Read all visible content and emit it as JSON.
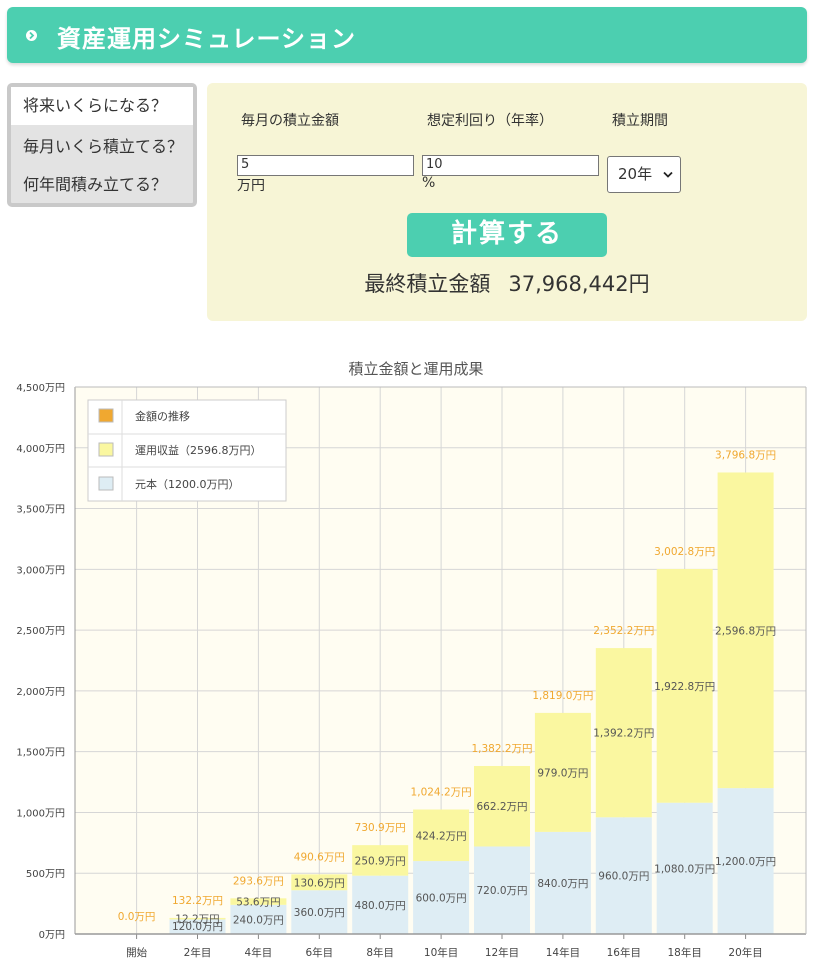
{
  "header": {
    "title": "資産運用シミュレーション"
  },
  "tabs": [
    {
      "label": "将来いくらになる？"
    },
    {
      "label": "毎月いくら積立てる？"
    },
    {
      "label": "何年間積み立てる？"
    }
  ],
  "form": {
    "monthly_label": "毎月の積立金額",
    "rate_label": "想定利回り（年率）",
    "period_label": "積立期間",
    "monthly_value": "5",
    "monthly_unit": "万円",
    "rate_value": "10",
    "rate_unit": "%",
    "period_value": "20年",
    "calc_label": "計算する",
    "result_label": "最終積立金額",
    "result_value": "37,968,442円"
  },
  "colors": {
    "accent": "#4ccfb0",
    "trend": "#f0a830",
    "profit": "#faf7a0",
    "principal": "#deedf4",
    "total_label": "#f0a830"
  },
  "chart_data": {
    "type": "bar",
    "title": "積立金額と運用成果",
    "categories": [
      "開始",
      "2年目",
      "4年目",
      "6年目",
      "8年目",
      "10年目",
      "12年目",
      "14年目",
      "16年目",
      "18年目",
      "20年目"
    ],
    "ylim": [
      0,
      4500
    ],
    "yticks": [
      0,
      500,
      1000,
      1500,
      2000,
      2500,
      3000,
      3500,
      4000,
      4500
    ],
    "ytick_labels": [
      "0万円",
      "500万円",
      "1,000万円",
      "1,500万円",
      "2,000万円",
      "2,500万円",
      "3,000万円",
      "3,500万円",
      "4,000万円",
      "4,500万円"
    ],
    "grid": true,
    "legend_position": "top-left",
    "legend": [
      "金額の推移",
      "運用収益（2596.8万円）",
      "元本（1200.0万円）"
    ],
    "series": [
      {
        "name": "元本（1200.0万円）",
        "values": [
          0,
          120.0,
          240.0,
          360.0,
          480.0,
          600.0,
          720.0,
          840.0,
          960.0,
          1080.0,
          1200.0
        ],
        "labels": [
          "",
          "120.0万円",
          "240.0万円",
          "360.0万円",
          "480.0万円",
          "600.0万円",
          "720.0万円",
          "840.0万円",
          "960.0万円",
          "1,080.0万円",
          "1,200.0万円"
        ]
      },
      {
        "name": "運用収益（2596.8万円）",
        "values": [
          0,
          12.2,
          53.6,
          130.6,
          250.9,
          424.2,
          662.2,
          979.0,
          1392.2,
          1922.8,
          2596.8
        ],
        "labels": [
          "",
          "12.2万円",
          "53.6万円",
          "130.6万円",
          "250.9万円",
          "424.2万円",
          "662.2万円",
          "979.0万円",
          "1,392.2万円",
          "1,922.8万円",
          "2,596.8万円"
        ]
      }
    ],
    "totals": [
      0.0,
      132.2,
      293.6,
      490.6,
      730.9,
      1024.2,
      1382.2,
      1819.0,
      2352.2,
      3002.8,
      3796.8
    ],
    "total_labels": [
      "0.0万円",
      "132.2万円",
      "293.6万円",
      "490.6万円",
      "730.9万円",
      "1,024.2万円",
      "1,382.2万円",
      "1,819.0万円",
      "2,352.2万円",
      "3,002.8万円",
      "3,796.8万円"
    ]
  }
}
